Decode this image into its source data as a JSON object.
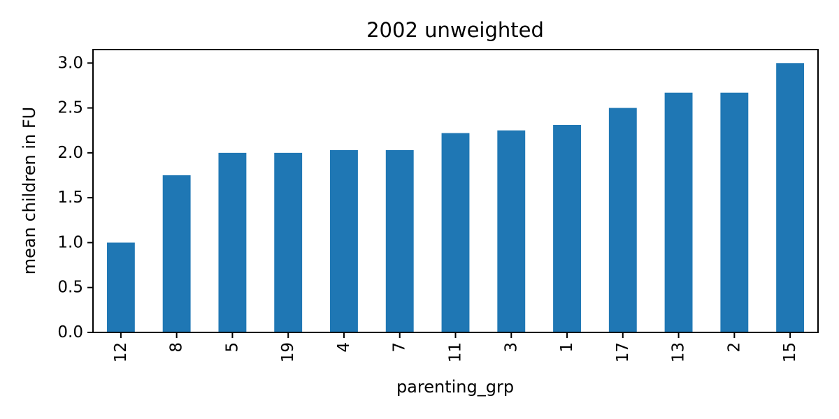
{
  "chart_data": {
    "type": "bar",
    "title": "2002 unweighted",
    "xlabel": "parenting_grp",
    "ylabel": "mean children in FU",
    "categories": [
      "12",
      "8",
      "5",
      "19",
      "4",
      "7",
      "11",
      "3",
      "1",
      "17",
      "13",
      "2",
      "15"
    ],
    "values": [
      1.0,
      1.75,
      2.0,
      2.0,
      2.03,
      2.03,
      2.22,
      2.25,
      2.31,
      2.5,
      2.67,
      2.67,
      3.0
    ],
    "ylim": [
      0,
      3.15
    ],
    "yticks": [
      0.0,
      0.5,
      1.0,
      1.5,
      2.0,
      2.5,
      3.0
    ],
    "ytick_labels": [
      "0.0",
      "0.5",
      "1.0",
      "1.5",
      "2.0",
      "2.5",
      "3.0"
    ],
    "xtick_rotation": "vertical",
    "grid": false,
    "legend": "none",
    "bar_color": "#1f77b4"
  }
}
